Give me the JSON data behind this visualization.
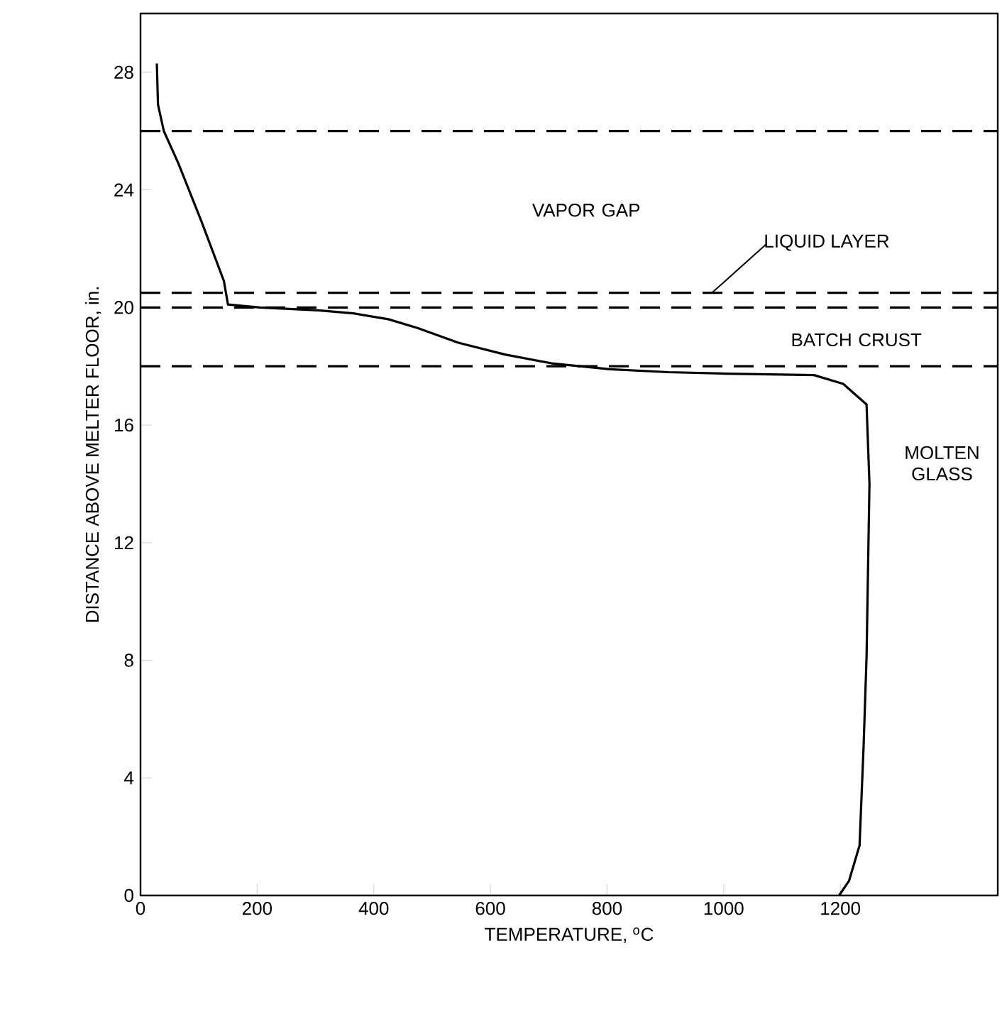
{
  "chart_data": {
    "type": "line",
    "xlabel": "TEMPERATURE, $^{o}$C",
    "ylabel": "DISTANCE ABOVE MELTER FLOOR, in.",
    "xlim": [
      0,
      1470
    ],
    "ylim": [
      0,
      30
    ],
    "xticks": [
      0,
      200,
      400,
      600,
      800,
      1000,
      1200
    ],
    "yticks": [
      0,
      4,
      8,
      12,
      16,
      20,
      24,
      28
    ],
    "grid": false,
    "marker": "none",
    "line_style": "solid",
    "series": [
      {
        "color": "#000000",
        "x": [
          28,
          30,
          40,
          65,
          105,
          143,
          150,
          205,
          305,
          365,
          425,
          475,
          545,
          625,
          705,
          805,
          905,
          1005,
          1155,
          1205,
          1245,
          1250,
          1245,
          1240,
          1233,
          1215,
          1198
        ],
        "values": [
          28.3,
          26.9,
          26.0,
          24.9,
          22.9,
          20.9,
          20.1,
          20.0,
          19.9,
          19.8,
          19.6,
          19.3,
          18.8,
          18.4,
          18.1,
          17.9,
          17.8,
          17.75,
          17.7,
          17.4,
          16.7,
          14.0,
          8.1,
          5.1,
          1.7,
          0.5,
          0
        ]
      }
    ],
    "ref_lines": [
      {
        "axis": "y",
        "value": 26,
        "line_style": "dashed"
      },
      {
        "axis": "y",
        "value": 20.5,
        "line_style": "dashed"
      },
      {
        "axis": "y",
        "value": 20,
        "line_style": "dashed"
      },
      {
        "axis": "y",
        "value": 18,
        "line_style": "dashed"
      }
    ],
    "annotations": [
      "VAPOR GAP",
      {
        "text": "LIQUID LAYER",
        "x": 980,
        "y": 20.5
      },
      "BATCH CRUST",
      "MOLTEN GLASS"
    ]
  }
}
